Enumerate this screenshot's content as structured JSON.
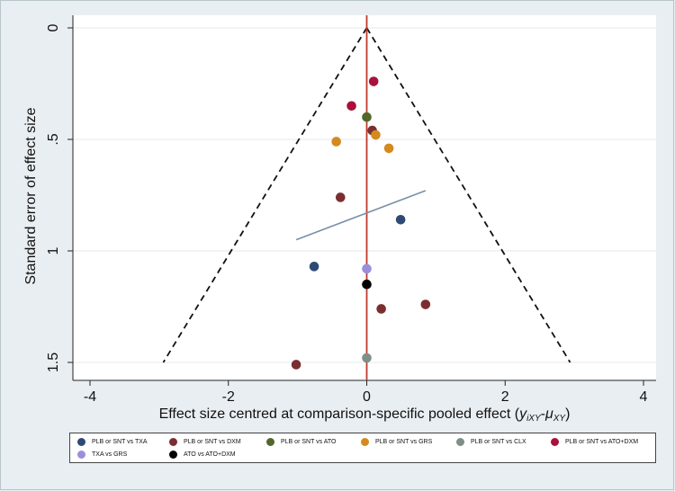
{
  "chart_data": {
    "type": "scatter",
    "title": "",
    "xlabel": "Effect size centred at comparison-specific pooled effect (",
    "xlabel_math": "y",
    "xlabel_sub1": "iXY",
    "xlabel_mid": "-",
    "xlabel_mu": "μ",
    "xlabel_sub2": "XY",
    "xlabel_end": ")",
    "ylabel": "Standard error of effect size",
    "xlim": [
      -4,
      4
    ],
    "ylim": [
      0,
      1.5
    ],
    "y_reversed": true,
    "x_ticks": [
      {
        "v": -4,
        "label": "-4"
      },
      {
        "v": -2,
        "label": "-2"
      },
      {
        "v": 0,
        "label": "0"
      },
      {
        "v": 2,
        "label": "2"
      },
      {
        "v": 4,
        "label": "4"
      }
    ],
    "y_ticks": [
      {
        "v": 0,
        "label": "0"
      },
      {
        "v": 0.5,
        "label": ".5"
      },
      {
        "v": 1,
        "label": "1"
      },
      {
        "v": 1.5,
        "label": "1.5"
      }
    ],
    "grid": true,
    "funnel": {
      "apex": [
        0,
        0
      ],
      "bottom": [
        [
          -2.94,
          1.5
        ],
        [
          2.94,
          1.5
        ]
      ],
      "style": "dashed"
    },
    "reference_line": {
      "x": 0,
      "color": "#c0392b"
    },
    "regression_line": {
      "x1": -1.02,
      "y1": 0.95,
      "x2": 0.85,
      "y2": 0.73,
      "color": "#7a8fa8"
    },
    "series": [
      {
        "name": "PLB or SNT vs TXA",
        "color": "#2e4a74",
        "points": [
          [
            0.49,
            0.86
          ],
          [
            -0.76,
            1.07
          ]
        ]
      },
      {
        "name": "PLB or SNT vs DXM",
        "color": "#7b2e30",
        "points": [
          [
            0.08,
            0.46
          ],
          [
            -0.38,
            0.76
          ],
          [
            0.85,
            1.24
          ],
          [
            0.21,
            1.26
          ],
          [
            -1.02,
            1.51
          ]
        ]
      },
      {
        "name": "PLB or SNT vs ATO",
        "color": "#52672a",
        "points": [
          [
            0.0,
            0.4
          ]
        ]
      },
      {
        "name": "PLB or SNT vs GRS",
        "color": "#d48a1f",
        "points": [
          [
            0.13,
            0.48
          ],
          [
            -0.44,
            0.51
          ],
          [
            0.32,
            0.54
          ]
        ]
      },
      {
        "name": "PLB or SNT vs CLX",
        "color": "#7f8f88",
        "points": [
          [
            0.0,
            1.48
          ]
        ]
      },
      {
        "name": "PLB or SNT vs ATO+DXM",
        "color": "#a8123a",
        "points": [
          [
            0.1,
            0.24
          ],
          [
            -0.22,
            0.35
          ]
        ]
      },
      {
        "name": "TXA vs GRS",
        "color": "#9b8fdb",
        "points": [
          [
            0.0,
            1.08
          ]
        ]
      },
      {
        "name": "ATO vs ATO+DXM",
        "color": "#000000",
        "points": [
          [
            0.0,
            1.15
          ]
        ]
      }
    ]
  }
}
